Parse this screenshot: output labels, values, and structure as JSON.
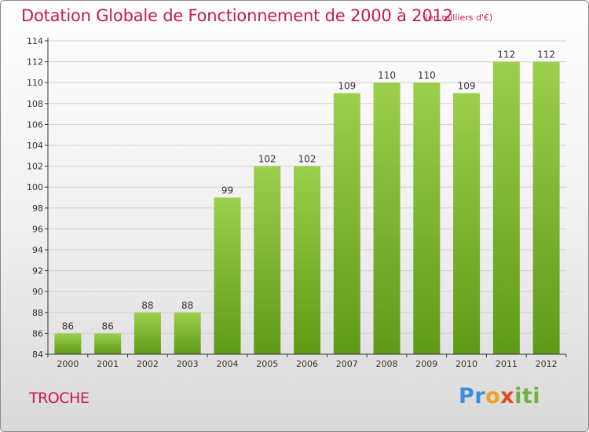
{
  "header": {
    "title": "Dotation Globale de Fonctionnement de 2000 à 2012",
    "unit": "(en milliers d'€)"
  },
  "footer": {
    "commune": "TROCHE",
    "logo": "Proxiti"
  },
  "colors": {
    "title": "#c8194f",
    "bar_light": "#9ccf4c",
    "bar_dark": "#5e9a18",
    "grid": "#d2d2d2",
    "axis": "#333333"
  },
  "chart_data": {
    "type": "bar",
    "categories": [
      "2000",
      "2001",
      "2002",
      "2003",
      "2004",
      "2005",
      "2006",
      "2007",
      "2008",
      "2009",
      "2010",
      "2011",
      "2012"
    ],
    "values": [
      86,
      86,
      88,
      88,
      99,
      102,
      102,
      109,
      110,
      110,
      109,
      112,
      112
    ],
    "data_labels": [
      "86",
      "86",
      "88",
      "88",
      "99",
      "102",
      "102",
      "109",
      "110",
      "110",
      "109",
      "112",
      "112"
    ],
    "yticks": [
      "84",
      "86",
      "88",
      "90",
      "92",
      "94",
      "96",
      "98",
      "100",
      "102",
      "104",
      "106",
      "108",
      "110",
      "112",
      "114"
    ],
    "ylim": [
      84,
      114
    ],
    "grid": true,
    "legend": "none"
  }
}
